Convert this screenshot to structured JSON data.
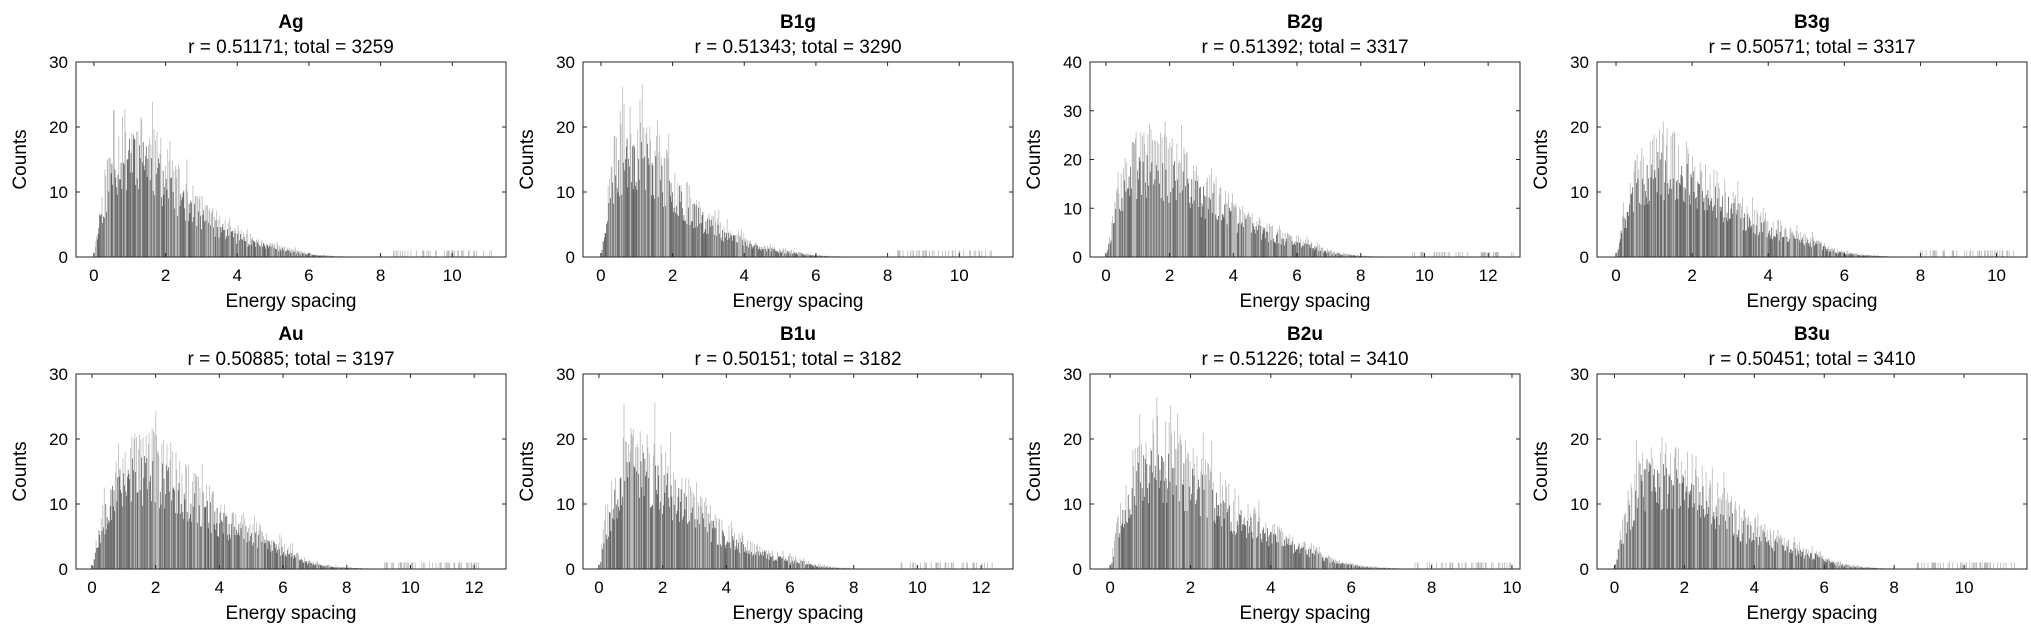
{
  "figure": {
    "background": "#ffffff",
    "bar_color": "#606060",
    "axis_color": "#262626"
  },
  "chart_data": [
    {
      "type": "bar",
      "title": "Ag",
      "subtitle": "r = 0.51171; total = 3259",
      "xlabel": "Energy spacing",
      "ylabel": "Counts",
      "xlim": [
        -0.5,
        11.5
      ],
      "ylim": [
        0,
        30
      ],
      "xticks": [
        0,
        2,
        4,
        6,
        8,
        10
      ],
      "yticks": [
        0,
        10,
        20,
        30
      ],
      "peak_x": 1.0,
      "peak_y": 29,
      "tail_end": 11.1,
      "seed": 11
    },
    {
      "type": "bar",
      "title": "B1g",
      "subtitle": "r = 0.51343; total = 3290",
      "xlabel": "Energy spacing",
      "ylabel": "Counts",
      "xlim": [
        -0.5,
        11.5
      ],
      "ylim": [
        0,
        30
      ],
      "xticks": [
        0,
        2,
        4,
        6,
        8,
        10
      ],
      "yticks": [
        0,
        10,
        20,
        30
      ],
      "peak_x": 0.9,
      "peak_y": 29,
      "tail_end": 11.0,
      "seed": 23
    },
    {
      "type": "bar",
      "title": "B2g",
      "subtitle": "r = 0.51392; total = 3317",
      "xlabel": "Energy spacing",
      "ylabel": "Counts",
      "xlim": [
        -0.5,
        13.0
      ],
      "ylim": [
        0,
        40
      ],
      "xticks": [
        0,
        2,
        4,
        6,
        8,
        10,
        12
      ],
      "yticks": [
        0,
        10,
        20,
        30,
        40
      ],
      "peak_x": 1.4,
      "peak_y": 34,
      "tail_end": 12.8,
      "seed": 37
    },
    {
      "type": "bar",
      "title": "B3g",
      "subtitle": "r = 0.50571; total = 3317",
      "xlabel": "Energy spacing",
      "ylabel": "Counts",
      "xlim": [
        -0.5,
        10.8
      ],
      "ylim": [
        0,
        30
      ],
      "xticks": [
        0,
        2,
        4,
        6,
        8,
        10
      ],
      "yticks": [
        0,
        10,
        20,
        30
      ],
      "peak_x": 1.2,
      "peak_y": 25,
      "tail_end": 10.5,
      "seed": 41
    },
    {
      "type": "bar",
      "title": "Au",
      "subtitle": "r = 0.50885; total = 3197",
      "xlabel": "Energy spacing",
      "ylabel": "Counts",
      "xlim": [
        -0.5,
        13.0
      ],
      "ylim": [
        0,
        30
      ],
      "xticks": [
        0,
        2,
        4,
        6,
        8,
        10,
        12
      ],
      "yticks": [
        0,
        10,
        20,
        30
      ],
      "peak_x": 1.5,
      "peak_y": 28,
      "tail_end": 12.2,
      "seed": 53
    },
    {
      "type": "bar",
      "title": "B1u",
      "subtitle": "r = 0.50151; total = 3182",
      "xlabel": "Energy spacing",
      "ylabel": "Counts",
      "xlim": [
        -0.5,
        13.0
      ],
      "ylim": [
        0,
        30
      ],
      "xticks": [
        0,
        2,
        4,
        6,
        8,
        10,
        12
      ],
      "yticks": [
        0,
        10,
        20,
        30
      ],
      "peak_x": 1.2,
      "peak_y": 28,
      "tail_end": 12.6,
      "seed": 67
    },
    {
      "type": "bar",
      "title": "",
      "subtitle": "r = 0.51226; total = 3410",
      "xlabel": "Energy spacing",
      "ylabel": "Counts",
      "xlim": [
        -0.5,
        10.2
      ],
      "ylim": [
        0,
        30
      ],
      "xticks": [
        0,
        2,
        4,
        6,
        8,
        10
      ],
      "yticks": [
        0,
        10,
        20,
        30
      ],
      "peak_x": 1.2,
      "peak_y": 29,
      "tail_end": 10.0,
      "seed": 79,
      "title_text": "B2u"
    },
    {
      "type": "bar",
      "title": "B3u",
      "subtitle": "r = 0.50451; total = 3410",
      "xlabel": "Energy spacing",
      "ylabel": "Counts",
      "xlim": [
        -0.5,
        11.8
      ],
      "ylim": [
        0,
        30
      ],
      "xticks": [
        0,
        2,
        4,
        6,
        8,
        10
      ],
      "yticks": [
        0,
        10,
        20,
        30
      ],
      "peak_x": 1.3,
      "peak_y": 26,
      "tail_end": 11.5,
      "seed": 83
    }
  ]
}
